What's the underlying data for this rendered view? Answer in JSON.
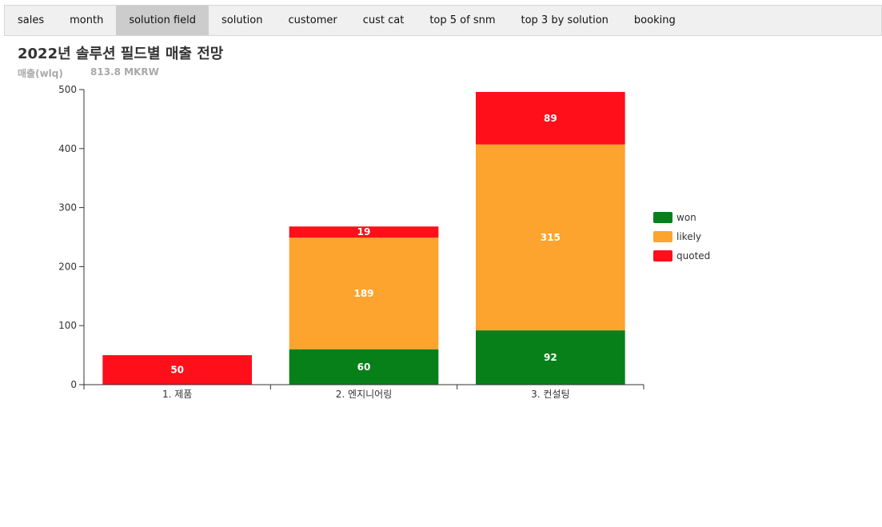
{
  "tabs": [
    {
      "label": "sales",
      "active": false
    },
    {
      "label": "month",
      "active": false
    },
    {
      "label": "solution field",
      "active": true
    },
    {
      "label": "solution",
      "active": false
    },
    {
      "label": "customer",
      "active": false
    },
    {
      "label": "cust cat",
      "active": false
    },
    {
      "label": "top 5 of snm",
      "active": false
    },
    {
      "label": "top 3 by solution",
      "active": false
    },
    {
      "label": "booking",
      "active": false
    }
  ],
  "header": {
    "title": "2022년 솔루션 필드별 매출 전망",
    "metric_label": "매출(wlq)",
    "metric_value": "813.8 MKRW"
  },
  "chart_data": {
    "type": "bar",
    "stacked": true,
    "categories": [
      "1. 제품",
      "2. 엔지니어링",
      "3. 컨설팅"
    ],
    "series": [
      {
        "name": "won",
        "values": [
          0,
          60,
          92
        ],
        "color": "#08801a"
      },
      {
        "name": "likely",
        "values": [
          0,
          189,
          315
        ],
        "color": "#fca42e"
      },
      {
        "name": "quoted",
        "values": [
          50,
          19,
          89
        ],
        "color": "#fe0f1a"
      }
    ],
    "ylim": [
      0,
      500
    ],
    "yticks": [
      0,
      100,
      200,
      300,
      400,
      500
    ],
    "grid": false,
    "legend": "right"
  }
}
